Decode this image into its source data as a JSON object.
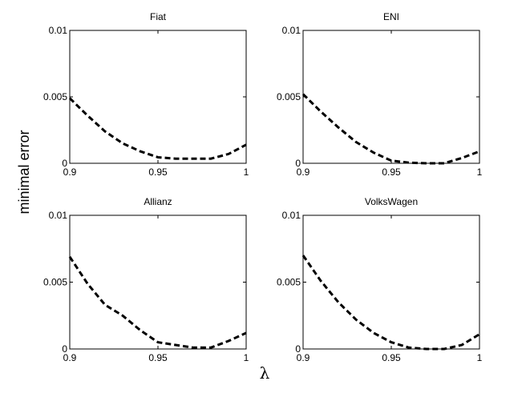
{
  "figure": {
    "ylabel": "minimal error",
    "xlabel": "λ"
  },
  "chart_data": [
    {
      "type": "line",
      "title": "Fiat",
      "xlim": [
        0.9,
        1
      ],
      "ylim": [
        0,
        0.01
      ],
      "xticks": [
        "0.9",
        "0.95",
        "1"
      ],
      "yticks": [
        "0",
        "0.005",
        "0.01"
      ],
      "grid": false,
      "line_style": "dashed",
      "line_color": "#000000",
      "x": [
        0.9,
        0.91,
        0.92,
        0.93,
        0.94,
        0.95,
        0.96,
        0.97,
        0.98,
        0.99,
        1.0
      ],
      "y": [
        0.0049,
        0.0036,
        0.0024,
        0.0015,
        0.0009,
        0.00045,
        0.00035,
        0.00035,
        0.00035,
        0.0007,
        0.0014
      ]
    },
    {
      "type": "line",
      "title": "ENI",
      "xlim": [
        0.9,
        1
      ],
      "ylim": [
        0,
        0.01
      ],
      "xticks": [
        "0.9",
        "0.95",
        "1"
      ],
      "yticks": [
        "0",
        "0.005",
        "0.01"
      ],
      "grid": false,
      "line_style": "dashed",
      "line_color": "#000000",
      "x": [
        0.9,
        0.91,
        0.92,
        0.93,
        0.94,
        0.95,
        0.96,
        0.97,
        0.98,
        0.99,
        1.0
      ],
      "y": [
        0.0052,
        0.0039,
        0.0027,
        0.0016,
        0.0008,
        0.0002,
        5e-05,
        0.0,
        0.0,
        0.0004,
        0.0009
      ]
    },
    {
      "type": "line",
      "title": "Allianz",
      "xlim": [
        0.9,
        1
      ],
      "ylim": [
        0,
        0.01
      ],
      "xticks": [
        "0.9",
        "0.95",
        "1"
      ],
      "yticks": [
        "0",
        "0.005",
        "0.01"
      ],
      "grid": false,
      "line_style": "dashed",
      "line_color": "#000000",
      "x": [
        0.9,
        0.91,
        0.92,
        0.93,
        0.94,
        0.95,
        0.96,
        0.97,
        0.98,
        0.99,
        1.0
      ],
      "y": [
        0.0069,
        0.0049,
        0.0033,
        0.0025,
        0.0014,
        0.0005,
        0.0003,
        0.0001,
        0.0001,
        0.0006,
        0.0012
      ]
    },
    {
      "type": "line",
      "title": "VolksWagen",
      "xlim": [
        0.9,
        1
      ],
      "ylim": [
        0,
        0.01
      ],
      "xticks": [
        "0.9",
        "0.95",
        "1"
      ],
      "yticks": [
        "0",
        "0.005",
        "0.01"
      ],
      "grid": false,
      "line_style": "dashed",
      "line_color": "#000000",
      "x": [
        0.9,
        0.91,
        0.92,
        0.93,
        0.94,
        0.95,
        0.96,
        0.97,
        0.98,
        0.99,
        1.0
      ],
      "y": [
        0.007,
        0.0051,
        0.0035,
        0.0022,
        0.0012,
        0.0005,
        0.0001,
        0.0,
        0.0,
        0.0003,
        0.0011
      ]
    }
  ]
}
